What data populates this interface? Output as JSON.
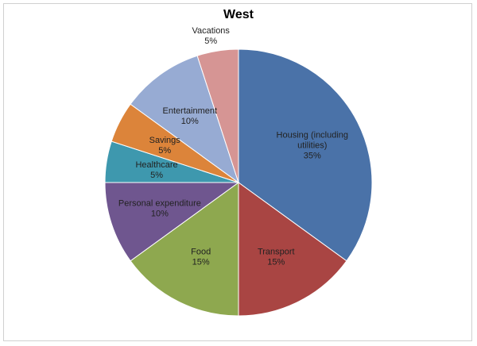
{
  "chart_data": {
    "type": "pie",
    "title": "West",
    "slices": [
      {
        "label": "Housing (including utilities)",
        "label_lines": [
          "Housing (including",
          "utilities)"
        ],
        "value": 35,
        "value_label": "35%",
        "color": "#4a72a8"
      },
      {
        "label": "Transport",
        "label_lines": [
          "Transport"
        ],
        "value": 15,
        "value_label": "15%",
        "color": "#a94543"
      },
      {
        "label": "Food",
        "label_lines": [
          "Food"
        ],
        "value": 15,
        "value_label": "15%",
        "color": "#8ea84f"
      },
      {
        "label": "Personal expenditure",
        "label_lines": [
          "Personal expenditure"
        ],
        "value": 10,
        "value_label": "10%",
        "color": "#6f568f"
      },
      {
        "label": "Healthcare",
        "label_lines": [
          "Healthcare"
        ],
        "value": 5,
        "value_label": "5%",
        "color": "#3e98ae"
      },
      {
        "label": "Savings",
        "label_lines": [
          "Savings"
        ],
        "value": 5,
        "value_label": "5%",
        "color": "#dc843a"
      },
      {
        "label": "Entertainment",
        "label_lines": [
          "Entertainment"
        ],
        "value": 10,
        "value_label": "10%",
        "color": "#97abd3"
      },
      {
        "label": "Vacations",
        "label_lines": [
          "Vacations"
        ],
        "value": 5,
        "value_label": "5%",
        "color": "#d69594"
      }
    ],
    "start_angle": "12 o'clock",
    "direction": "clockwise",
    "legend": "none"
  }
}
